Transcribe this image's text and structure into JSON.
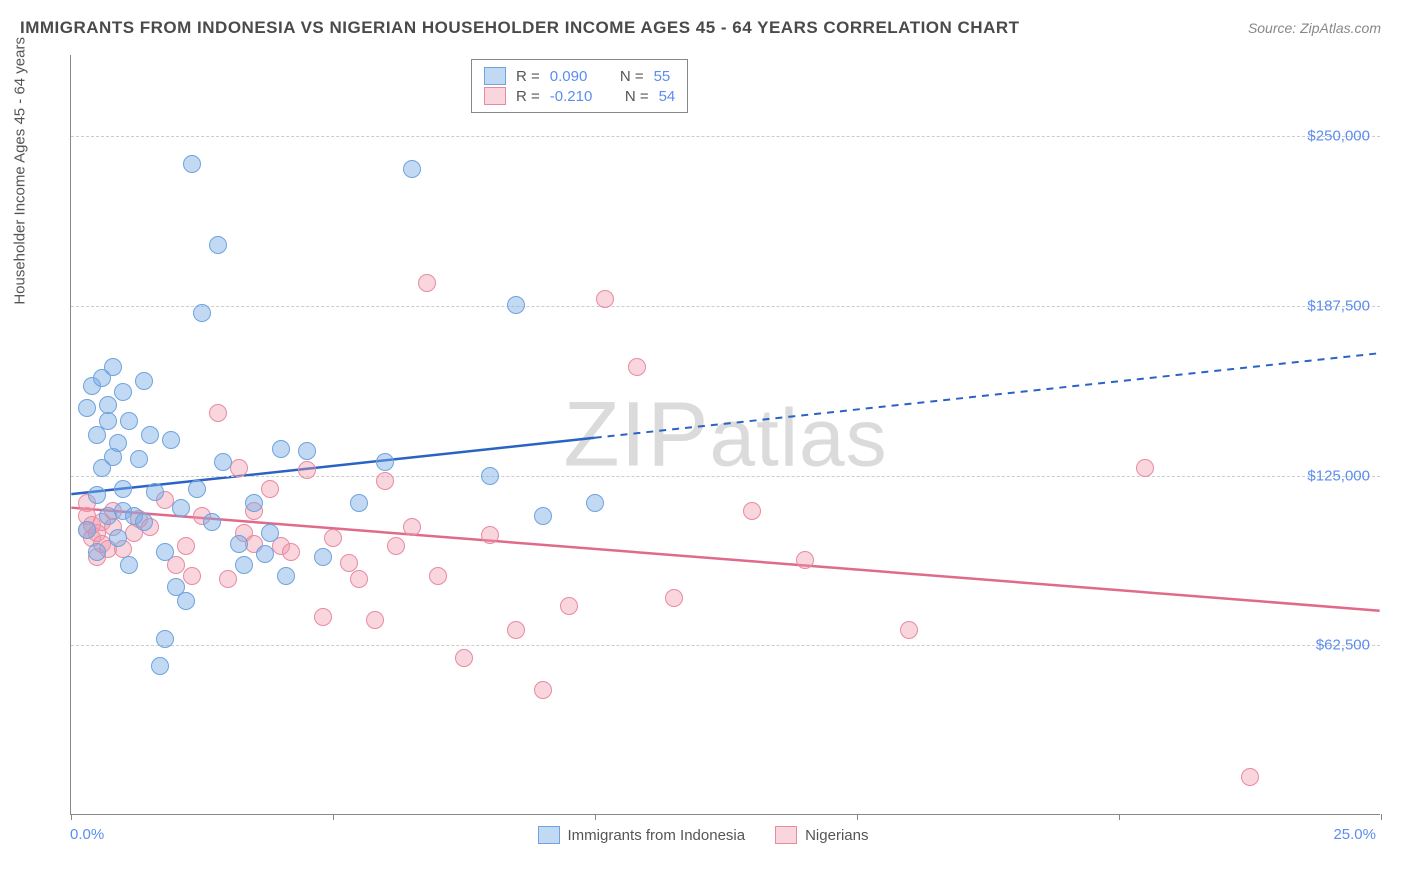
{
  "title": "IMMIGRANTS FROM INDONESIA VS NIGERIAN HOUSEHOLDER INCOME AGES 45 - 64 YEARS CORRELATION CHART",
  "source": "Source: ZipAtlas.com",
  "watermark": "ZIPatlas",
  "y_axis_title": "Householder Income Ages 45 - 64 years",
  "x_axis": {
    "min_label": "0.0%",
    "max_label": "25.0%",
    "min": 0.0,
    "max": 25.0,
    "tick_step": 5.0
  },
  "y_axis": {
    "min": 0,
    "max": 280000,
    "tick_step": 62500,
    "tick_labels": [
      "$62,500",
      "$125,000",
      "$187,500",
      "$250,000"
    ]
  },
  "colors": {
    "series_a_fill": "rgba(120,170,230,0.45)",
    "series_a_stroke": "#6fa3dd",
    "series_b_fill": "rgba(240,150,170,0.40)",
    "series_b_stroke": "#e88aa2",
    "line_a": "#2a63c4",
    "line_b": "#e06a8a",
    "grid": "#cccccc",
    "axis": "#888888",
    "tick_text": "#5b8def",
    "title_text": "#4a4a4a",
    "source_text": "#888888",
    "background": "#ffffff"
  },
  "legend_top": {
    "rows": [
      {
        "swatch": "a",
        "r_label": "R =",
        "r_val": "0.090",
        "n_label": "N =",
        "n_val": "55"
      },
      {
        "swatch": "b",
        "r_label": "R =",
        "r_val": "-0.210",
        "n_label": "N =",
        "n_val": "54"
      }
    ]
  },
  "legend_bottom": {
    "items": [
      {
        "swatch": "a",
        "label": "Immigrants from Indonesia"
      },
      {
        "swatch": "b",
        "label": "Nigerians"
      }
    ]
  },
  "trend_lines": {
    "a": {
      "y_at_xmin": 118000,
      "y_at_xmax": 170000,
      "solid_until_x": 10.0
    },
    "b": {
      "y_at_xmin": 113000,
      "y_at_xmax": 75000,
      "solid_until_x": 25.0
    }
  },
  "point_radius": 9,
  "series_a": [
    [
      0.3,
      105000
    ],
    [
      0.3,
      150000
    ],
    [
      0.4,
      158000
    ],
    [
      0.5,
      97000
    ],
    [
      0.5,
      118000
    ],
    [
      0.5,
      140000
    ],
    [
      0.6,
      128000
    ],
    [
      0.6,
      161000
    ],
    [
      0.7,
      110000
    ],
    [
      0.7,
      145000
    ],
    [
      0.7,
      151000
    ],
    [
      0.8,
      132000
    ],
    [
      0.8,
      165000
    ],
    [
      0.9,
      137000
    ],
    [
      0.9,
      102000
    ],
    [
      1.0,
      120000
    ],
    [
      1.0,
      156000
    ],
    [
      1.0,
      112000
    ],
    [
      1.1,
      92000
    ],
    [
      1.1,
      145000
    ],
    [
      1.2,
      110000
    ],
    [
      1.3,
      131000
    ],
    [
      1.4,
      108000
    ],
    [
      1.4,
      160000
    ],
    [
      1.5,
      140000
    ],
    [
      1.6,
      119000
    ],
    [
      1.7,
      55000
    ],
    [
      1.8,
      97000
    ],
    [
      1.8,
      65000
    ],
    [
      1.9,
      138000
    ],
    [
      2.0,
      84000
    ],
    [
      2.1,
      113000
    ],
    [
      2.2,
      79000
    ],
    [
      2.3,
      240000
    ],
    [
      2.4,
      120000
    ],
    [
      2.5,
      185000
    ],
    [
      2.7,
      108000
    ],
    [
      2.8,
      210000
    ],
    [
      2.9,
      130000
    ],
    [
      3.2,
      100000
    ],
    [
      3.3,
      92000
    ],
    [
      3.5,
      115000
    ],
    [
      3.7,
      96000
    ],
    [
      3.8,
      104000
    ],
    [
      4.0,
      135000
    ],
    [
      4.1,
      88000
    ],
    [
      4.5,
      134000
    ],
    [
      4.8,
      95000
    ],
    [
      5.5,
      115000
    ],
    [
      6.0,
      130000
    ],
    [
      6.5,
      238000
    ],
    [
      8.0,
      125000
    ],
    [
      8.5,
      188000
    ],
    [
      9.0,
      110000
    ],
    [
      10.0,
      115000
    ]
  ],
  "series_b": [
    [
      0.3,
      105000
    ],
    [
      0.3,
      110000
    ],
    [
      0.3,
      115000
    ],
    [
      0.4,
      102000
    ],
    [
      0.4,
      107000
    ],
    [
      0.5,
      104000
    ],
    [
      0.5,
      95000
    ],
    [
      0.6,
      108000
    ],
    [
      0.6,
      100000
    ],
    [
      0.7,
      98000
    ],
    [
      0.8,
      106000
    ],
    [
      0.8,
      112000
    ],
    [
      1.0,
      98000
    ],
    [
      1.2,
      104000
    ],
    [
      1.3,
      109000
    ],
    [
      1.5,
      106000
    ],
    [
      1.8,
      116000
    ],
    [
      2.0,
      92000
    ],
    [
      2.2,
      99000
    ],
    [
      2.3,
      88000
    ],
    [
      2.5,
      110000
    ],
    [
      2.8,
      148000
    ],
    [
      3.0,
      87000
    ],
    [
      3.2,
      128000
    ],
    [
      3.3,
      104000
    ],
    [
      3.5,
      112000
    ],
    [
      3.5,
      100000
    ],
    [
      3.8,
      120000
    ],
    [
      4.0,
      99000
    ],
    [
      4.2,
      97000
    ],
    [
      4.5,
      127000
    ],
    [
      4.8,
      73000
    ],
    [
      5.0,
      102000
    ],
    [
      5.3,
      93000
    ],
    [
      5.5,
      87000
    ],
    [
      5.8,
      72000
    ],
    [
      6.0,
      123000
    ],
    [
      6.2,
      99000
    ],
    [
      6.5,
      106000
    ],
    [
      6.8,
      196000
    ],
    [
      7.0,
      88000
    ],
    [
      7.5,
      58000
    ],
    [
      8.0,
      103000
    ],
    [
      8.5,
      68000
    ],
    [
      9.0,
      46000
    ],
    [
      9.5,
      77000
    ],
    [
      10.2,
      190000
    ],
    [
      10.8,
      165000
    ],
    [
      11.5,
      80000
    ],
    [
      13.0,
      112000
    ],
    [
      14.0,
      94000
    ],
    [
      16.0,
      68000
    ],
    [
      20.5,
      128000
    ],
    [
      22.5,
      14000
    ]
  ]
}
